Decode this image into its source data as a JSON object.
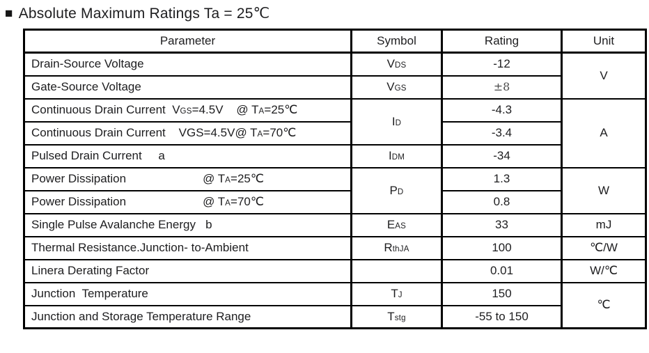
{
  "title": {
    "bullet": "■",
    "text": "Absolute Maximum Ratings Ta = 25℃"
  },
  "colors": {
    "background": "#ffffff",
    "text": "#1d1d1f",
    "border": "#000000",
    "pm_value": "#4a4a4a"
  },
  "table": {
    "headers": [
      "Parameter",
      "Symbol",
      "Rating",
      "Unit"
    ],
    "rows": [
      {
        "name": "drain-source-voltage",
        "param": {
          "segs": [
            {
              "t": "Drain-Source Voltage"
            }
          ]
        },
        "symbol": {
          "segs": [
            {
              "t": "V"
            },
            {
              "t": "DS",
              "cls": "sub"
            }
          ]
        },
        "rating": {
          "segs": [
            {
              "t": "-12"
            }
          ]
        },
        "unit": {
          "segs": [
            {
              "t": "V"
            }
          ],
          "span": 2
        }
      },
      {
        "name": "gate-source-voltage",
        "param": {
          "segs": [
            {
              "t": "Gate-Source Voltage"
            }
          ]
        },
        "symbol": {
          "segs": [
            {
              "t": "V"
            },
            {
              "t": "GS",
              "cls": "sub"
            }
          ]
        },
        "rating": {
          "segs": [
            {
              "t": "±8",
              "cls": "pm"
            }
          ]
        }
      },
      {
        "name": "continuous-drain-current-ta25",
        "param": {
          "segs": [
            {
              "t": "Continuous Drain Current  V"
            },
            {
              "t": "GS",
              "cls": "sub"
            },
            {
              "t": "=4.5V    @ T"
            },
            {
              "t": "A",
              "cls": "sub"
            },
            {
              "t": "=25℃"
            }
          ]
        },
        "symbol": {
          "segs": [
            {
              "t": "I"
            },
            {
              "t": "D",
              "cls": "sub"
            }
          ],
          "span": 2
        },
        "rating": {
          "segs": [
            {
              "t": "-4.3"
            }
          ]
        },
        "unit": {
          "segs": [
            {
              "t": "A"
            }
          ],
          "span": 3
        }
      },
      {
        "name": "continuous-drain-current-ta70",
        "param": {
          "segs": [
            {
              "t": "Continuous Drain Current    VGS=4.5V@ T"
            },
            {
              "t": "A",
              "cls": "sub"
            },
            {
              "t": "=70℃"
            }
          ]
        },
        "rating": {
          "segs": [
            {
              "t": "-3.4"
            }
          ]
        }
      },
      {
        "name": "pulsed-drain-current",
        "param": {
          "segs": [
            {
              "t": "Pulsed Drain Current     a"
            }
          ]
        },
        "symbol": {
          "segs": [
            {
              "t": "I"
            },
            {
              "t": "DM",
              "cls": "sub"
            }
          ]
        },
        "rating": {
          "segs": [
            {
              "t": "-34"
            }
          ]
        }
      },
      {
        "name": "power-dissipation-ta25",
        "param": {
          "segs": [
            {
              "t": "Power Dissipation"
            },
            {
              "t": "",
              "cls": "gap"
            },
            {
              "t": "@ T"
            },
            {
              "t": "A",
              "cls": "sub"
            },
            {
              "t": "=25℃"
            }
          ]
        },
        "symbol": {
          "segs": [
            {
              "t": "P"
            },
            {
              "t": "D",
              "cls": "sub"
            }
          ],
          "span": 2
        },
        "rating": {
          "segs": [
            {
              "t": "1.3"
            }
          ]
        },
        "unit": {
          "segs": [
            {
              "t": "W"
            }
          ],
          "span": 2
        }
      },
      {
        "name": "power-dissipation-ta70",
        "param": {
          "segs": [
            {
              "t": "Power Dissipation"
            },
            {
              "t": "",
              "cls": "gap"
            },
            {
              "t": "@ T"
            },
            {
              "t": "A",
              "cls": "sub"
            },
            {
              "t": "=70℃"
            }
          ]
        },
        "rating": {
          "segs": [
            {
              "t": "0.8"
            }
          ]
        }
      },
      {
        "name": "single-pulse-avalanche-energy",
        "param": {
          "segs": [
            {
              "t": "Single Pulse Avalanche Energy   b"
            }
          ]
        },
        "symbol": {
          "segs": [
            {
              "t": "E"
            },
            {
              "t": "AS",
              "cls": "sub"
            }
          ]
        },
        "rating": {
          "segs": [
            {
              "t": "33"
            }
          ]
        },
        "unit": {
          "segs": [
            {
              "t": "mJ"
            }
          ]
        }
      },
      {
        "name": "thermal-resistance-junction-to-ambient",
        "param": {
          "segs": [
            {
              "t": "Thermal Resistance.Junction- to-Ambient"
            }
          ]
        },
        "symbol": {
          "segs": [
            {
              "t": "R"
            },
            {
              "t": "thJA",
              "cls": "sub"
            }
          ]
        },
        "rating": {
          "segs": [
            {
              "t": "100"
            }
          ]
        },
        "unit": {
          "segs": [
            {
              "t": "℃/W"
            }
          ]
        }
      },
      {
        "name": "linera-derating-factor",
        "param": {
          "segs": [
            {
              "t": "Linera Derating Factor"
            }
          ]
        },
        "symbol": {
          "segs": []
        },
        "rating": {
          "segs": [
            {
              "t": "0.01"
            }
          ]
        },
        "unit": {
          "segs": [
            {
              "t": "W/℃"
            }
          ]
        }
      },
      {
        "name": "junction-temperature",
        "param": {
          "segs": [
            {
              "t": "Junction  Temperature"
            }
          ]
        },
        "symbol": {
          "segs": [
            {
              "t": "T"
            },
            {
              "t": "J",
              "cls": "sub"
            }
          ]
        },
        "rating": {
          "segs": [
            {
              "t": "150"
            }
          ]
        },
        "unit": {
          "segs": [
            {
              "t": "℃"
            }
          ],
          "span": 2
        }
      },
      {
        "name": "junction-and-storage-temperature-range",
        "param": {
          "segs": [
            {
              "t": "Junction and Storage Temperature Range"
            }
          ]
        },
        "symbol": {
          "segs": [
            {
              "t": "T"
            },
            {
              "t": "stg",
              "cls": "sub"
            }
          ]
        },
        "rating": {
          "segs": [
            {
              "t": "-55 to 150"
            }
          ]
        }
      }
    ]
  }
}
